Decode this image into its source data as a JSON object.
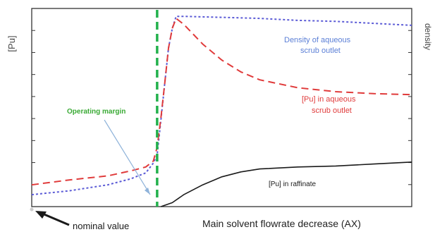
{
  "chart_data": {
    "type": "line",
    "title": "",
    "xlabel": "Main solvent flowrate decrease (AX)",
    "ylabel": "[Pu]",
    "y2label": "density",
    "xlim": [
      0,
      100
    ],
    "ylim": [
      0,
      100
    ],
    "grid": false,
    "series": [
      {
        "name": "Density of aqueous scrub outlet",
        "color": "#5b5bd6",
        "style": "dotted",
        "points": [
          [
            0,
            6
          ],
          [
            10,
            8
          ],
          [
            20,
            11
          ],
          [
            26,
            14
          ],
          [
            30,
            17
          ],
          [
            32,
            22
          ],
          [
            33,
            26
          ],
          [
            34,
            44
          ],
          [
            35,
            62
          ],
          [
            36,
            80
          ],
          [
            37,
            90
          ],
          [
            38,
            96
          ],
          [
            40,
            96
          ],
          [
            50,
            95.5
          ],
          [
            60,
            95
          ],
          [
            70,
            94
          ],
          [
            80,
            93.5
          ],
          [
            90,
            92.5
          ],
          [
            100,
            91.5
          ]
        ]
      },
      {
        "name": "[Pu] in aqueous scrub outlet",
        "color": "#e03b3b",
        "style": "dashed",
        "points": [
          [
            0,
            11
          ],
          [
            10,
            13.5
          ],
          [
            20,
            15.5
          ],
          [
            26,
            18
          ],
          [
            30,
            20
          ],
          [
            32,
            23
          ],
          [
            33,
            30
          ],
          [
            34,
            45
          ],
          [
            35,
            62
          ],
          [
            36,
            80
          ],
          [
            37,
            90
          ],
          [
            38,
            95
          ],
          [
            40,
            92
          ],
          [
            45,
            82
          ],
          [
            50,
            74
          ],
          [
            55,
            68
          ],
          [
            60,
            64
          ],
          [
            70,
            60
          ],
          [
            80,
            58
          ],
          [
            90,
            57
          ],
          [
            100,
            56.5
          ]
        ]
      },
      {
        "name": "[Pu] in raffinate",
        "color": "#1a1a1a",
        "style": "solid",
        "points": [
          [
            34,
            -1
          ],
          [
            37,
            2
          ],
          [
            40,
            6
          ],
          [
            45,
            11
          ],
          [
            50,
            15
          ],
          [
            55,
            17.5
          ],
          [
            60,
            19
          ],
          [
            70,
            20
          ],
          [
            80,
            20.5
          ],
          [
            90,
            21.5
          ],
          [
            100,
            22.5
          ]
        ]
      }
    ],
    "annotations": [
      {
        "text": "Operating margin",
        "color": "#3aaa35"
      },
      {
        "text": "Density of aqueous",
        "color": "#5b7fd6"
      },
      {
        "text": "scrub outlet",
        "color": "#5b7fd6"
      },
      {
        "text": "[Pu] in aqueous",
        "color": "#e03b3b"
      },
      {
        "text": "scrub outlet",
        "color": "#e03b3b"
      },
      {
        "text": "[Pu] in raffinate",
        "color": "#1a1a1a"
      },
      {
        "text": "nominal value",
        "color": "#1a1a1a"
      }
    ],
    "operating_line": {
      "x": 33,
      "color": "#22b14c"
    }
  }
}
